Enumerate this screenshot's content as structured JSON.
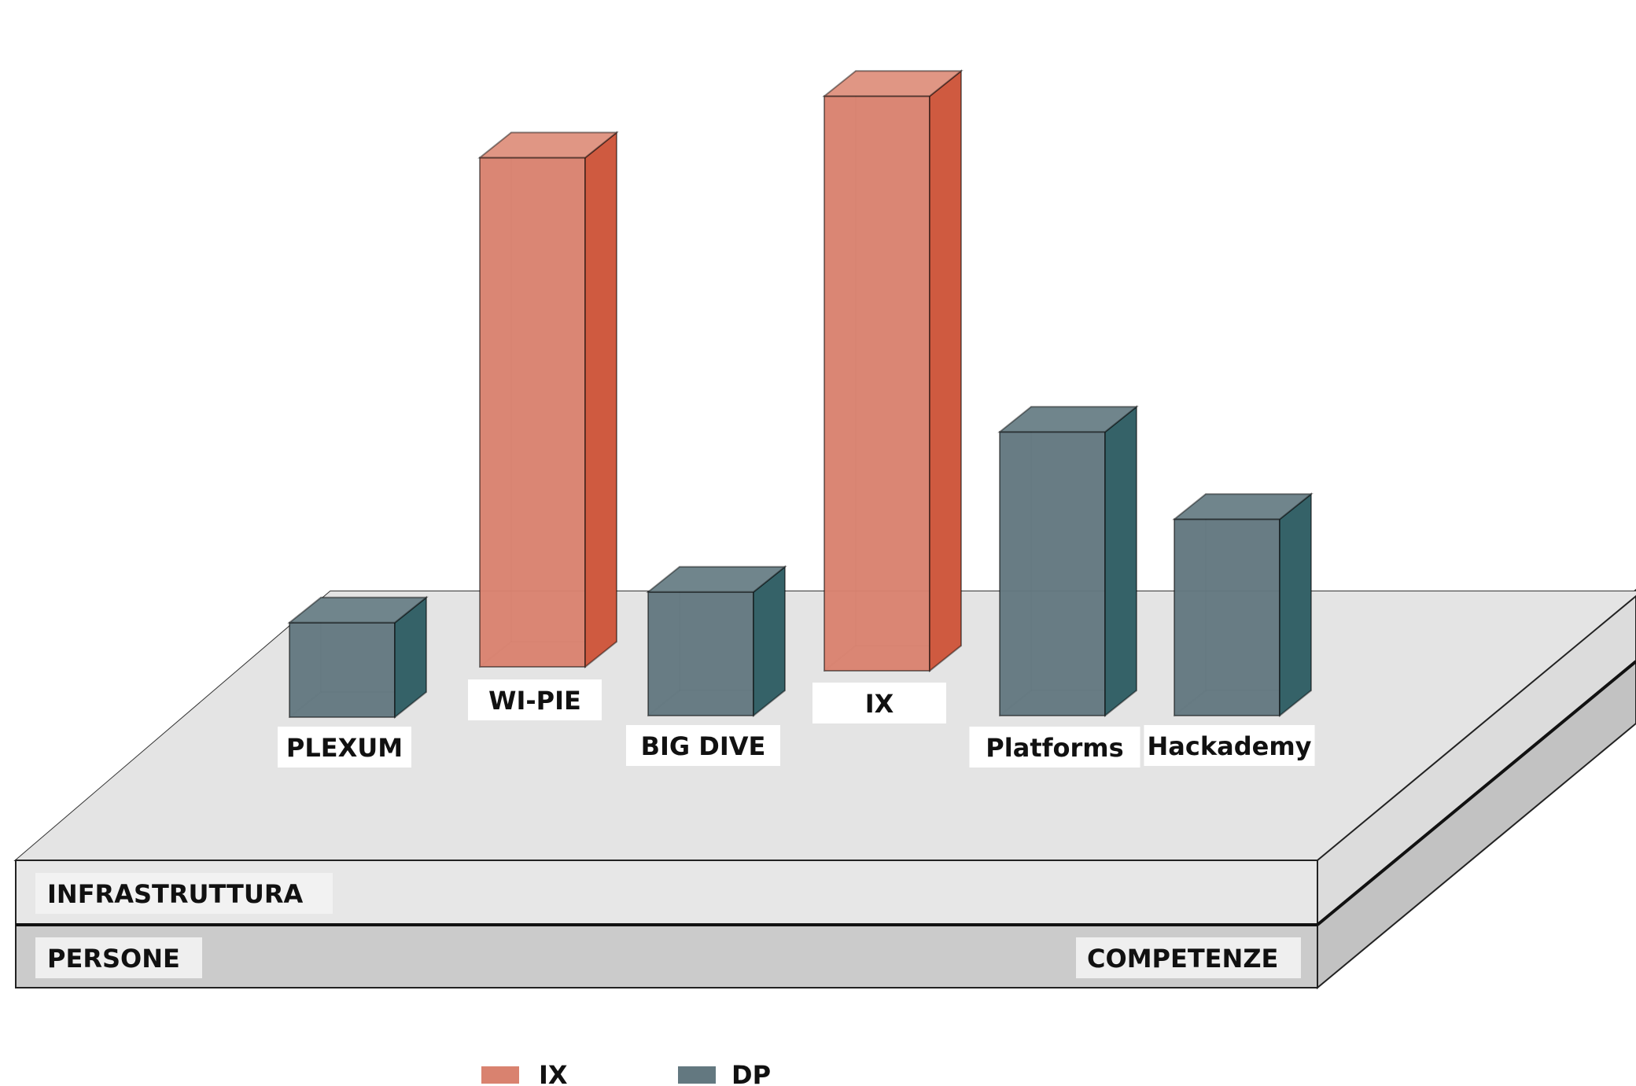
{
  "chart_data": {
    "type": "bar",
    "style": "3d",
    "categories": [
      "PLEXUM",
      "WI-PIE",
      "BIG DIVE",
      "IX",
      "Platforms",
      "Hackademy"
    ],
    "values": [
      1.3,
      7.0,
      1.7,
      7.9,
      3.9,
      2.7
    ],
    "groups": [
      "DP",
      "IX",
      "DP",
      "IX",
      "DP",
      "DP"
    ],
    "ylim": [
      0,
      8
    ],
    "grid": false,
    "legend_position": "bottom-center",
    "series": [
      {
        "name": "IX",
        "color": "#d9826f",
        "side_color": "#cf5a40",
        "top_color": "#e09684"
      },
      {
        "name": "DP",
        "color": "#637880",
        "side_color": "#356268",
        "top_color": "#70858c"
      }
    ]
  },
  "platform": {
    "layer_top_label": "INFRASTRUTTURA",
    "layer_bottom_left_label": "PERSONE",
    "layer_bottom_right_label": "COMPETENZE"
  },
  "legend": {
    "items": [
      {
        "name": "IX",
        "color": "#d9826f"
      },
      {
        "name": "DP",
        "color": "#637880"
      }
    ]
  }
}
